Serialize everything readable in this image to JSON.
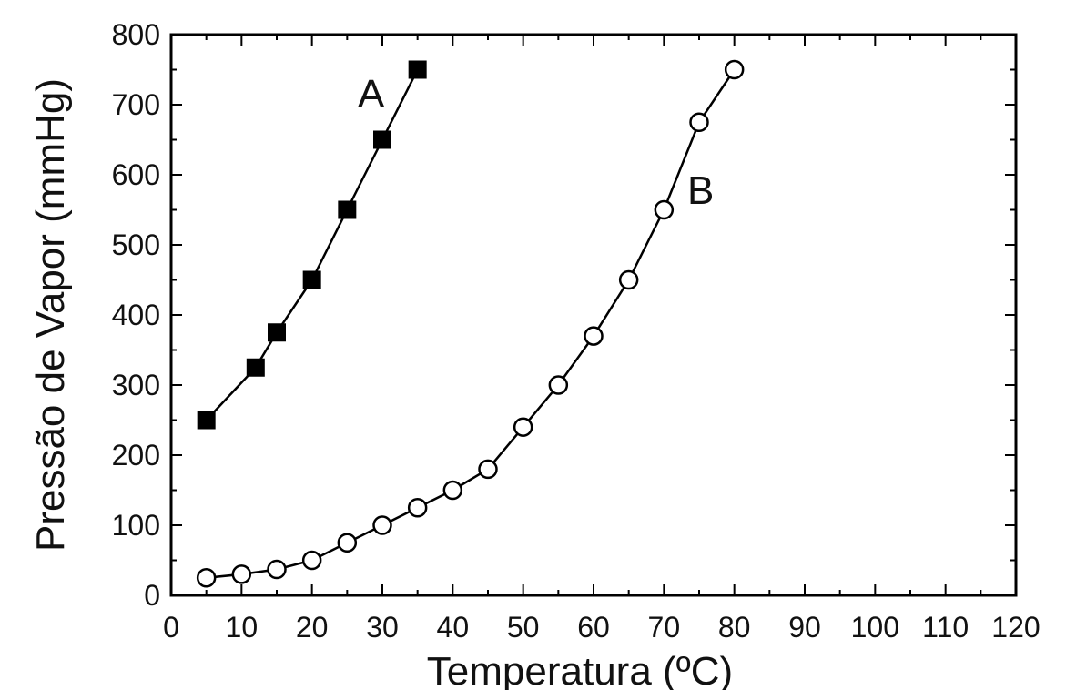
{
  "chart_data": {
    "type": "scatter",
    "xlabel": "Temperatura (ºC)",
    "ylabel": "Pressão de Vapor (mmHg)",
    "xlim": [
      0,
      120
    ],
    "ylim": [
      0,
      800
    ],
    "xticks": [
      0,
      10,
      20,
      30,
      40,
      50,
      60,
      70,
      80,
      90,
      100,
      110,
      120
    ],
    "yticks": [
      0,
      100,
      200,
      300,
      400,
      500,
      600,
      700,
      800
    ],
    "grid": false,
    "series": [
      {
        "name": "A",
        "marker": "filled-square",
        "color": "#000000",
        "x": [
          5,
          12,
          15,
          20,
          25,
          30,
          35
        ],
        "y": [
          250,
          325,
          375,
          450,
          550,
          650,
          750
        ]
      },
      {
        "name": "B",
        "marker": "open-circle",
        "color": "#000000",
        "x": [
          5,
          10,
          15,
          20,
          25,
          30,
          35,
          40,
          45,
          50,
          55,
          60,
          65,
          70,
          75,
          80
        ],
        "y": [
          25,
          30,
          37,
          50,
          75,
          100,
          125,
          150,
          180,
          240,
          300,
          370,
          450,
          550,
          675,
          750
        ]
      }
    ]
  }
}
